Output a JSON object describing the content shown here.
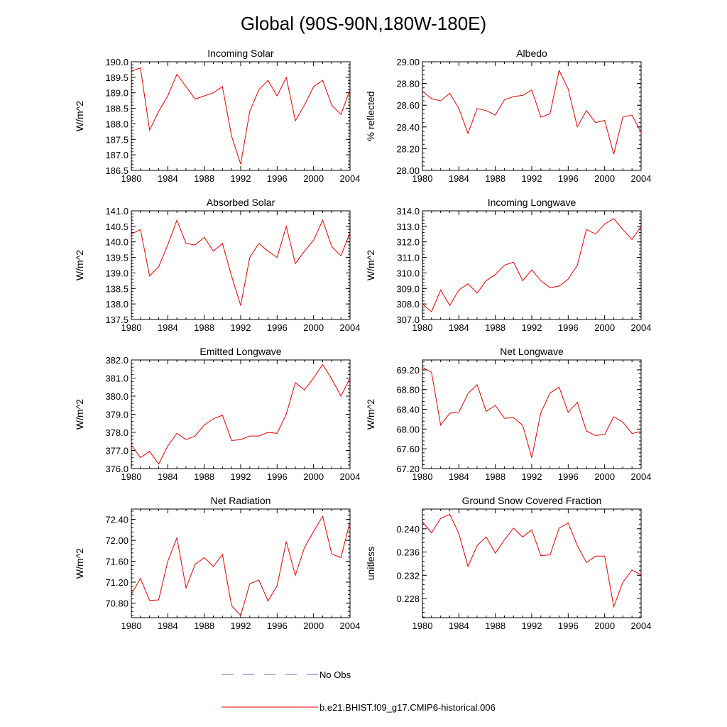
{
  "title": "Global (90S-90N,180W-180E)",
  "colors": {
    "model": "#e00000",
    "obs": "#6666cc",
    "axis": "#000000"
  },
  "legend": {
    "obs_label": "No Obs",
    "model_label": "b.e21.BHIST.f09_g17.CMIP6-historical.006"
  },
  "chart_data": [
    {
      "type": "line",
      "title": "Incoming Solar",
      "xlabel": "",
      "ylabel": "W/m^2",
      "xlim": [
        1980,
        2004
      ],
      "ylim": [
        186.5,
        190.0
      ],
      "xticks": [
        "1980",
        "1984",
        "1988",
        "1992",
        "1996",
        "2000",
        "2004"
      ],
      "yticks": [
        "186.5",
        "187.0",
        "187.5",
        "188.0",
        "188.5",
        "189.0",
        "189.5",
        "190.0"
      ],
      "series": [
        {
          "name": "b.e21.BHIST.f09_g17.CMIP6-historical.006",
          "x": [
            1980,
            1981,
            1982,
            1983,
            1984,
            1985,
            1986,
            1987,
            1988,
            1989,
            1990,
            1991,
            1992,
            1993,
            1994,
            1995,
            1996,
            1997,
            1998,
            1999,
            2000,
            2001,
            2002,
            2003,
            2004
          ],
          "values": [
            189.7,
            189.8,
            187.8,
            188.4,
            188.9,
            189.6,
            189.2,
            188.8,
            188.9,
            189.0,
            189.2,
            187.6,
            186.7,
            188.4,
            189.1,
            189.4,
            188.9,
            189.5,
            188.1,
            188.6,
            189.2,
            189.4,
            188.6,
            188.3,
            189.1
          ]
        }
      ]
    },
    {
      "type": "line",
      "title": "Albedo",
      "xlabel": "",
      "ylabel": "% reflected",
      "xlim": [
        1980,
        2004
      ],
      "ylim": [
        28.0,
        29.0
      ],
      "xticks": [
        "1980",
        "1984",
        "1988",
        "1992",
        "1996",
        "2000",
        "2004"
      ],
      "yticks": [
        "28.00",
        "28.20",
        "28.40",
        "28.60",
        "28.80",
        "29.00"
      ],
      "series": [
        {
          "name": "b.e21.BHIST.f09_g17.CMIP6-historical.006",
          "x": [
            1980,
            1981,
            1982,
            1983,
            1984,
            1985,
            1986,
            1987,
            1988,
            1989,
            1990,
            1991,
            1992,
            1993,
            1994,
            1995,
            1996,
            1997,
            1998,
            1999,
            2000,
            2001,
            2002,
            2003,
            2004
          ],
          "values": [
            28.73,
            28.66,
            28.64,
            28.71,
            28.57,
            28.34,
            28.57,
            28.55,
            28.51,
            28.65,
            28.68,
            28.69,
            28.74,
            28.49,
            28.52,
            28.92,
            28.75,
            28.4,
            28.55,
            28.44,
            28.46,
            28.15,
            28.49,
            28.51,
            28.35
          ]
        }
      ]
    },
    {
      "type": "line",
      "title": "Absorbed Solar",
      "xlabel": "",
      "ylabel": "W/m^2",
      "xlim": [
        1980,
        2004
      ],
      "ylim": [
        137.5,
        141.0
      ],
      "xticks": [
        "1980",
        "1984",
        "1988",
        "1992",
        "1996",
        "2000",
        "2004"
      ],
      "yticks": [
        "137.5",
        "138.0",
        "138.5",
        "139.0",
        "139.5",
        "140.0",
        "140.5",
        "141.0"
      ],
      "series": [
        {
          "name": "b.e21.BHIST.f09_g17.CMIP6-historical.006",
          "x": [
            1980,
            1981,
            1982,
            1983,
            1984,
            1985,
            1986,
            1987,
            1988,
            1989,
            1990,
            1991,
            1992,
            1993,
            1994,
            1995,
            1996,
            1997,
            1998,
            1999,
            2000,
            2001,
            2002,
            2003,
            2004
          ],
          "values": [
            140.25,
            140.4,
            138.9,
            139.2,
            139.9,
            140.7,
            139.95,
            139.9,
            140.15,
            139.7,
            139.95,
            138.9,
            137.95,
            139.5,
            139.95,
            139.7,
            139.5,
            140.5,
            139.3,
            139.7,
            140.05,
            140.7,
            139.85,
            139.55,
            140.3
          ]
        }
      ]
    },
    {
      "type": "line",
      "title": "Incoming Longwave",
      "xlabel": "",
      "ylabel": "W/m^2",
      "xlim": [
        1980,
        2004
      ],
      "ylim": [
        307.0,
        314.0
      ],
      "xticks": [
        "1980",
        "1984",
        "1988",
        "1992",
        "1996",
        "2000",
        "2004"
      ],
      "yticks": [
        "307.0",
        "308.0",
        "309.0",
        "310.0",
        "311.0",
        "312.0",
        "313.0",
        "314.0"
      ],
      "series": [
        {
          "name": "b.e21.BHIST.f09_g17.CMIP6-historical.006",
          "x": [
            1980,
            1981,
            1982,
            1983,
            1984,
            1985,
            1986,
            1987,
            1988,
            1989,
            1990,
            1991,
            1992,
            1993,
            1994,
            1995,
            1996,
            1997,
            1998,
            1999,
            2000,
            2001,
            2002,
            2003,
            2004
          ],
          "values": [
            308.0,
            307.5,
            308.9,
            307.9,
            308.9,
            309.3,
            308.7,
            309.5,
            309.9,
            310.5,
            310.7,
            309.5,
            310.2,
            309.5,
            309.05,
            309.15,
            309.6,
            310.5,
            312.8,
            312.5,
            313.15,
            313.5,
            312.8,
            312.15,
            313.0
          ]
        }
      ]
    },
    {
      "type": "line",
      "title": "Emitted Longwave",
      "xlabel": "",
      "ylabel": "W/m^2",
      "xlim": [
        1980,
        2004
      ],
      "ylim": [
        376.0,
        382.0
      ],
      "xticks": [
        "1980",
        "1984",
        "1988",
        "1992",
        "1996",
        "2000",
        "2004"
      ],
      "yticks": [
        "376.0",
        "377.0",
        "378.0",
        "379.0",
        "380.0",
        "381.0",
        "382.0"
      ],
      "series": [
        {
          "name": "b.e21.BHIST.f09_g17.CMIP6-historical.006",
          "x": [
            1980,
            1981,
            1982,
            1983,
            1984,
            1985,
            1986,
            1987,
            1988,
            1989,
            1990,
            1991,
            1992,
            1993,
            1994,
            1995,
            1996,
            1997,
            1998,
            1999,
            2000,
            2001,
            2002,
            2003,
            2004
          ],
          "values": [
            377.3,
            376.6,
            376.95,
            376.25,
            377.25,
            377.95,
            377.6,
            377.8,
            378.4,
            378.75,
            378.95,
            377.55,
            377.6,
            377.8,
            377.8,
            378.0,
            377.95,
            379.0,
            380.75,
            380.35,
            381.0,
            381.75,
            380.95,
            380.0,
            381.0
          ]
        }
      ]
    },
    {
      "type": "line",
      "title": "Net Longwave",
      "xlabel": "",
      "ylabel": "W/m^2",
      "xlim": [
        1980,
        2004
      ],
      "ylim": [
        67.2,
        69.4
      ],
      "xticks": [
        "1980",
        "1984",
        "1988",
        "1992",
        "1996",
        "2000",
        "2004"
      ],
      "yticks": [
        "67.20",
        "67.60",
        "68.00",
        "68.40",
        "68.80",
        "69.20"
      ],
      "series": [
        {
          "name": "b.e21.BHIST.f09_g17.CMIP6-historical.006",
          "x": [
            1980,
            1981,
            1982,
            1983,
            1984,
            1985,
            1986,
            1987,
            1988,
            1989,
            1990,
            1991,
            1992,
            1993,
            1994,
            1995,
            1996,
            1997,
            1998,
            1999,
            2000,
            2001,
            2002,
            2003,
            2004
          ],
          "values": [
            69.25,
            69.15,
            68.08,
            68.32,
            68.34,
            68.72,
            68.9,
            68.36,
            68.48,
            68.22,
            68.23,
            68.08,
            67.42,
            68.33,
            68.73,
            68.85,
            68.34,
            68.54,
            67.96,
            67.87,
            67.89,
            68.25,
            68.14,
            67.91,
            67.95
          ]
        }
      ]
    },
    {
      "type": "line",
      "title": "Net Radiation",
      "xlabel": "",
      "ylabel": "W/m^2",
      "xlim": [
        1980,
        2004
      ],
      "ylim": [
        70.52,
        72.6
      ],
      "xticks": [
        "1980",
        "1984",
        "1988",
        "1992",
        "1996",
        "2000",
        "2004"
      ],
      "yticks": [
        "70.80",
        "71.20",
        "71.60",
        "72.00",
        "72.40"
      ],
      "series": [
        {
          "name": "b.e21.BHIST.f09_g17.CMIP6-historical.006",
          "x": [
            1980,
            1981,
            1982,
            1983,
            1984,
            1985,
            1986,
            1987,
            1988,
            1989,
            1990,
            1991,
            1992,
            1993,
            1994,
            1995,
            1996,
            1997,
            1998,
            1999,
            2000,
            2001,
            2002,
            2003,
            2004
          ],
          "values": [
            70.97,
            71.27,
            70.85,
            70.86,
            71.6,
            72.05,
            71.09,
            71.54,
            71.67,
            71.5,
            71.73,
            70.75,
            70.56,
            71.17,
            71.24,
            70.84,
            71.13,
            71.98,
            71.33,
            71.86,
            72.17,
            72.46,
            71.74,
            71.67,
            72.36
          ]
        }
      ]
    },
    {
      "type": "line",
      "title": "Ground Snow Covered Fraction",
      "xlabel": "",
      "ylabel": "unitless",
      "xlim": [
        1980,
        2004
      ],
      "ylim": [
        0.2247,
        0.2434
      ],
      "xticks": [
        "1980",
        "1984",
        "1988",
        "1992",
        "1996",
        "2000",
        "2004"
      ],
      "yticks": [
        "0.228",
        "0.232",
        "0.236",
        "0.240"
      ],
      "series": [
        {
          "name": "b.e21.BHIST.f09_g17.CMIP6-historical.006",
          "x": [
            1980,
            1981,
            1982,
            1983,
            1984,
            1985,
            1986,
            1987,
            1988,
            1989,
            1990,
            1991,
            1992,
            1993,
            1994,
            1995,
            1996,
            1997,
            1998,
            1999,
            2000,
            2001,
            2002,
            2003,
            2004
          ],
          "values": [
            0.2412,
            0.2393,
            0.2418,
            0.2425,
            0.2392,
            0.2335,
            0.2371,
            0.2386,
            0.2358,
            0.2381,
            0.2401,
            0.2386,
            0.2398,
            0.2354,
            0.2355,
            0.2401,
            0.241,
            0.2371,
            0.2342,
            0.2353,
            0.2353,
            0.2266,
            0.2308,
            0.2329,
            0.2321
          ]
        }
      ]
    }
  ]
}
